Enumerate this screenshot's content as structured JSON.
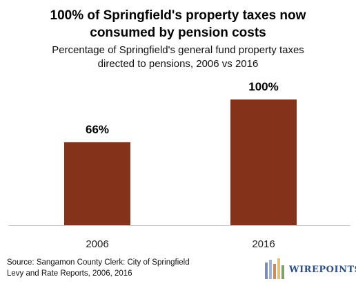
{
  "chart_data": {
    "type": "bar",
    "title": "100% of Springfield's property taxes now consumed by pension costs",
    "subtitle": "Percentage of Springfield's general fund property taxes directed to pensions, 2006 vs 2016",
    "categories": [
      "2006",
      "2016"
    ],
    "values": [
      66,
      100
    ],
    "data_labels": [
      "66%",
      "100%"
    ],
    "ylim": [
      0,
      100
    ],
    "grid": false,
    "legend": "none",
    "bar_color": "#843219"
  },
  "source": {
    "line1": "Source: Sangamon County Clerk: City of Springfield",
    "line2": "Levy and Rate Reports, 2006, 2016"
  },
  "logo": {
    "text": "WIREPOINTS"
  }
}
